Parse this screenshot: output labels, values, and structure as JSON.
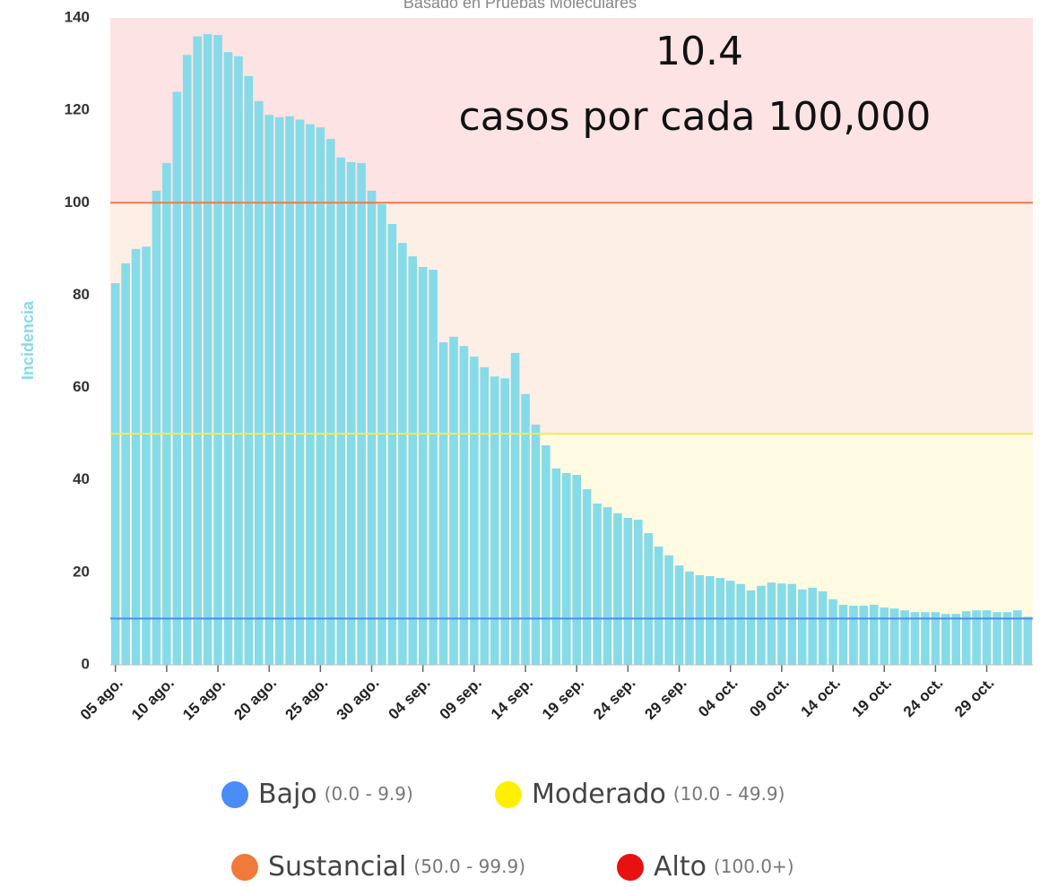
{
  "chart_data": {
    "type": "bar",
    "subtitle": "Basado en Pruebas Moleculares",
    "y_label": "Incidencia",
    "annotations": [
      "10.4",
      "casos por cada 100,000"
    ],
    "color": "#86dbe8",
    "categories": [
      "05 ago.",
      null,
      null,
      null,
      null,
      "10 ago.",
      null,
      null,
      null,
      null,
      "15 ago.",
      null,
      null,
      null,
      null,
      "20 ago.",
      null,
      null,
      null,
      null,
      "25 ago.",
      null,
      null,
      null,
      null,
      "30 ago.",
      null,
      null,
      null,
      null,
      "04 sep.",
      null,
      null,
      null,
      null,
      "09 sep.",
      null,
      null,
      null,
      null,
      "14 sep.",
      null,
      null,
      null,
      null,
      "19 sep.",
      null,
      null,
      null,
      null,
      "24 sep.",
      null,
      null,
      null,
      null,
      "29 sep.",
      null,
      null,
      null,
      null,
      "04 oct.",
      null,
      null,
      null,
      null,
      "09 oct.",
      null,
      null,
      null,
      null,
      "14 oct.",
      null,
      null,
      null,
      null,
      "19 oct.",
      null,
      null,
      null,
      null,
      "24 oct.",
      null,
      null,
      null,
      null,
      "29 oct.",
      null,
      null,
      null,
      null
    ],
    "values": [
      82.6,
      86.9,
      90,
      90.5,
      102.6,
      108.6,
      124,
      132,
      136,
      136.5,
      136.3,
      132.6,
      131.7,
      127.4,
      122,
      119,
      118.5,
      118.7,
      118,
      117,
      116.3,
      113.8,
      109.8,
      108.8,
      108.6,
      102.6,
      99.7,
      95.4,
      91.3,
      88.4,
      86.1,
      85.5,
      69.8,
      71,
      69,
      66.7,
      64.4,
      62.4,
      62,
      67.5,
      58.6,
      52,
      47.5,
      42.5,
      41.5,
      41.1,
      38,
      34.9,
      34.1,
      32.8,
      31.8,
      31.4,
      28.5,
      25.6,
      23.7,
      21.5,
      20.2,
      19.4,
      19.2,
      18.8,
      18.2,
      17.5,
      16.1,
      17.1,
      17.8,
      17.6,
      17.5,
      16.3,
      16.7,
      15.9,
      14.2,
      13,
      12.8,
      12.8,
      13,
      12.4,
      12.2,
      11.8,
      11.4,
      11.4,
      11.4,
      11,
      11,
      11.6,
      11.8,
      11.8,
      11.4,
      11.4,
      11.8,
      10.4
    ],
    "ylim": [
      0,
      140
    ],
    "yticks": [
      0,
      20,
      40,
      60,
      80,
      100,
      120,
      140
    ],
    "bands": [
      {
        "from": 10,
        "to": 50,
        "color": "#fffbe3"
      },
      {
        "from": 50,
        "to": 100,
        "color": "#fdeee6"
      },
      {
        "from": 100,
        "to": 140,
        "color": "#fde3e3"
      }
    ],
    "thresholds": [
      {
        "value": 10,
        "color": "#4a8cf5"
      },
      {
        "value": 50,
        "color": "#f5ec4a"
      },
      {
        "value": 100,
        "color": "#f07a4a"
      }
    ],
    "legend": [
      {
        "name": "Bajo",
        "range": "(0.0 - 9.9)",
        "color": "#4a8cf5"
      },
      {
        "name": "Moderado",
        "range": "(10.0 - 49.9)",
        "color": "#fff000"
      },
      {
        "name": "Sustancial",
        "range": "(50.0 - 99.9)",
        "color": "#f07a3a"
      },
      {
        "name": "Alto",
        "range": "(100.0+)",
        "color": "#e81010"
      }
    ]
  }
}
